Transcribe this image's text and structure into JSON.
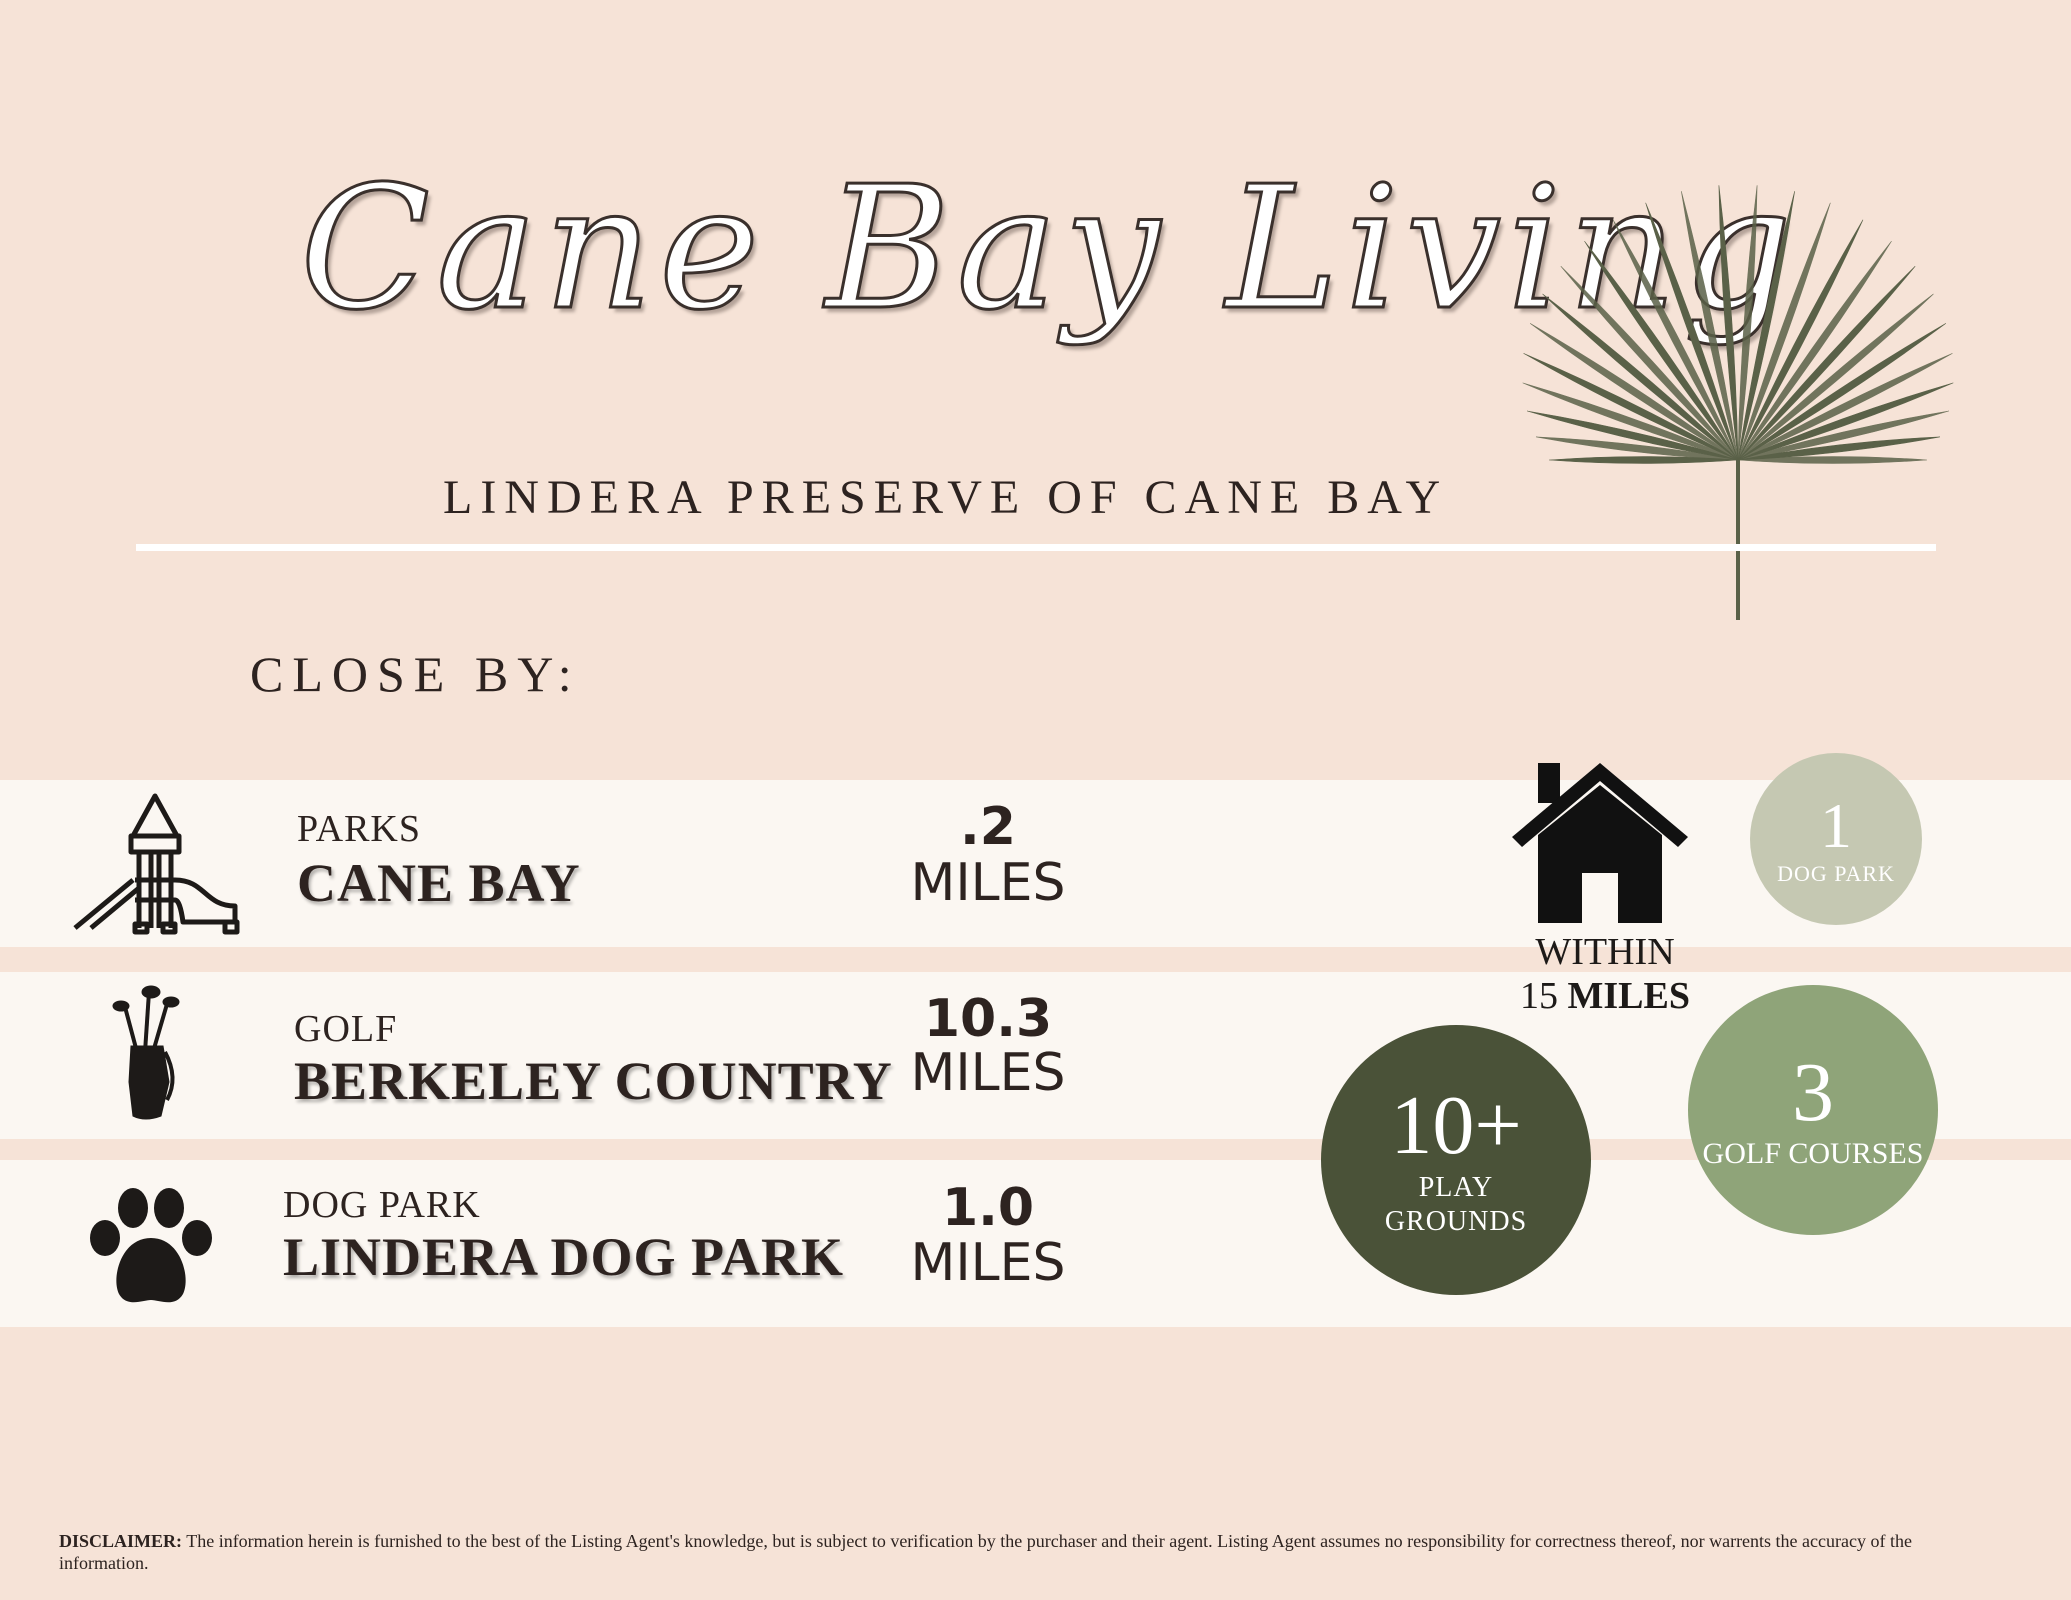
{
  "title": "Cane Bay Living",
  "subtitle": "LINDERA PRESERVE OF CANE BAY",
  "section_heading": "CLOSE BY:",
  "rows": [
    {
      "category": "PARKS",
      "place": "CANE BAY",
      "distance": ".2",
      "unit": "MILES",
      "icon": "playground-slide-icon"
    },
    {
      "category": "GOLF",
      "place": "BERKELEY COUNTRY",
      "distance": "10.3",
      "unit": "MILES",
      "icon": "golf-bag-icon"
    },
    {
      "category": "DOG PARK",
      "place": "LINDERA DOG PARK",
      "distance": "1.0",
      "unit": "MILES",
      "icon": "paw-print-icon"
    }
  ],
  "radius": {
    "within": "WITHIN",
    "count": "15",
    "unit": "MILES",
    "icon": "house-icon"
  },
  "stats": {
    "dog_park": {
      "number": "1",
      "label": "DOG PARK",
      "color": "#c5c8b2"
    },
    "golf": {
      "number": "3",
      "label": "GOLF COURSES",
      "color": "#8fa479"
    },
    "playgrounds": {
      "number": "10+",
      "label_line1": "PLAY",
      "label_line2": "GROUNDS",
      "color": "#4a5238"
    }
  },
  "disclaimer": {
    "label": "DISCLAIMER:",
    "text": "The information herein is furnished to the best of the Listing Agent's knowledge, but is subject to verification by the purchaser and their agent. Listing Agent assumes no responsibility for correctness thereof, nor warrents the accuracy of the information."
  },
  "colors": {
    "background": "#f6e3d7",
    "band": "#fbf7f2",
    "palm": "#5a6148"
  }
}
